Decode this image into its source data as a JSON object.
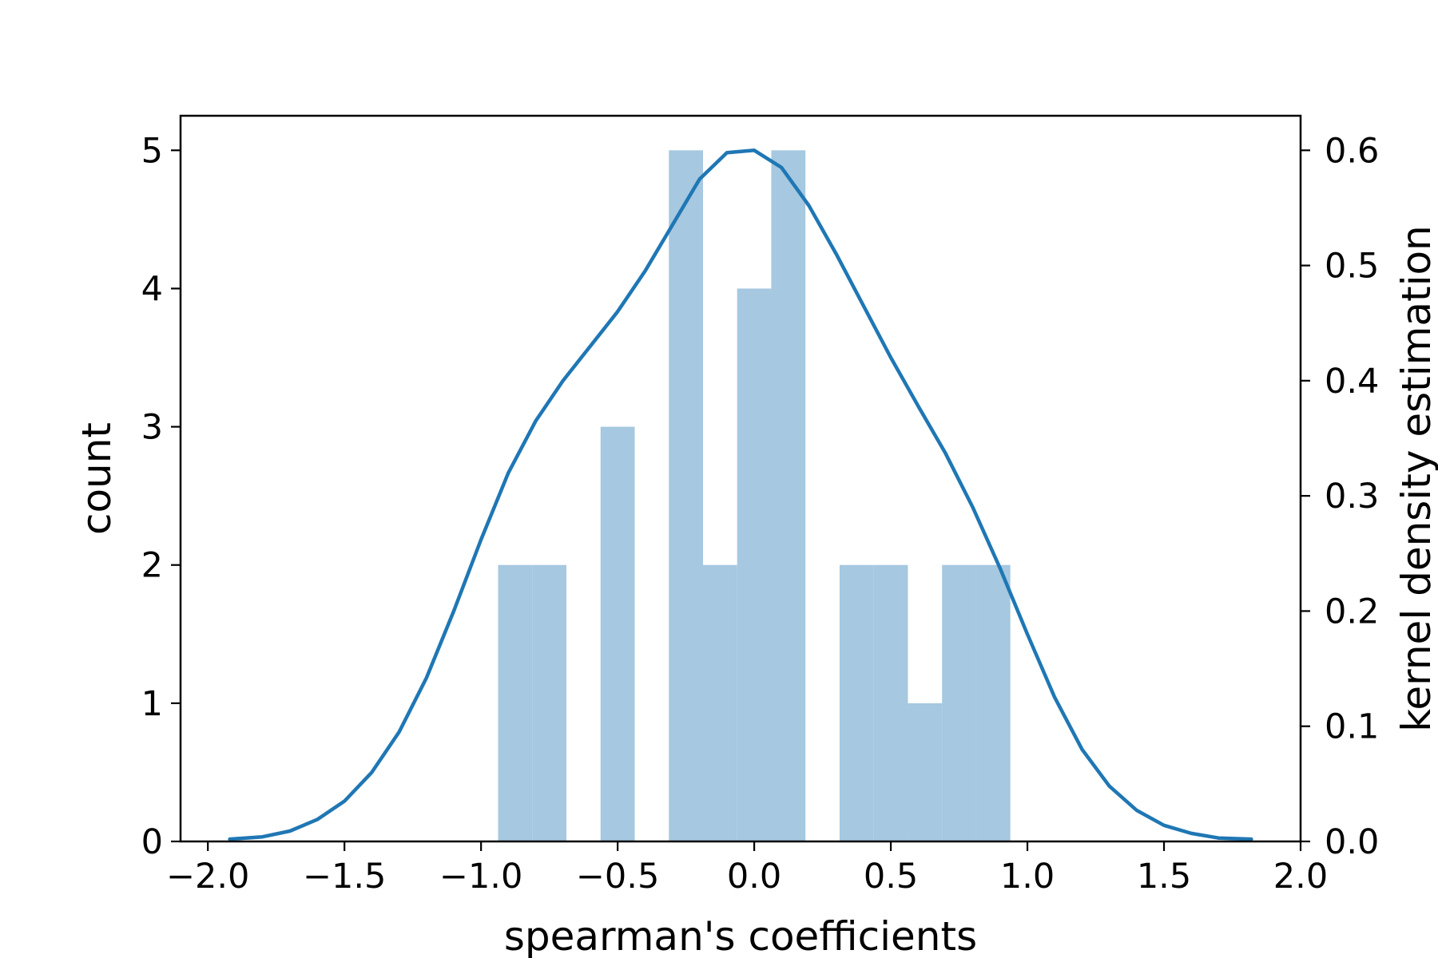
{
  "chart_data": {
    "type": "bar",
    "xlabel": "spearman's coefficients",
    "ylabel": "count",
    "y2label": "kernel density estimation",
    "xlim": [
      -2.1,
      2.0
    ],
    "ylim": [
      0,
      5.25
    ],
    "y2lim": [
      0,
      0.63
    ],
    "xticks": [
      -2.0,
      -1.5,
      -1.0,
      -0.5,
      0.0,
      0.5,
      1.0,
      1.5,
      2.0
    ],
    "xtick_labels": [
      "−2.0",
      "−1.5",
      "−1.0",
      "−0.5",
      "0.0",
      "0.5",
      "1.0",
      "1.5",
      "2.0"
    ],
    "yticks": [
      0,
      1,
      2,
      3,
      4,
      5
    ],
    "ytick_labels": [
      "0",
      "1",
      "2",
      "3",
      "4",
      "5"
    ],
    "y2ticks": [
      0.0,
      0.1,
      0.2,
      0.3,
      0.4,
      0.5,
      0.6
    ],
    "y2tick_labels": [
      "0.0",
      "0.1",
      "0.2",
      "0.3",
      "0.4",
      "0.5",
      "0.6"
    ],
    "histogram": {
      "bin_edges": [
        -0.9375,
        -0.8125,
        -0.6875,
        -0.5625,
        -0.4375,
        -0.3125,
        -0.1875,
        -0.0625,
        0.0625,
        0.1875,
        0.3125,
        0.4375,
        0.5625,
        0.6875,
        0.8125,
        0.9375
      ],
      "counts": [
        2,
        2,
        0,
        3,
        0,
        5,
        2,
        4,
        5,
        0,
        2,
        2,
        1,
        2,
        2
      ],
      "color": "#a6c8e0"
    },
    "kde": {
      "color": "#1f77b4",
      "x": [
        -1.92,
        -1.8,
        -1.7,
        -1.6,
        -1.5,
        -1.4,
        -1.3,
        -1.2,
        -1.1,
        -1.0,
        -0.9,
        -0.8,
        -0.7,
        -0.6,
        -0.5,
        -0.4,
        -0.3,
        -0.2,
        -0.1,
        0.0,
        0.1,
        0.2,
        0.3,
        0.4,
        0.5,
        0.6,
        0.7,
        0.8,
        0.9,
        1.0,
        1.1,
        1.2,
        1.3,
        1.4,
        1.5,
        1.6,
        1.7,
        1.82
      ],
      "y": [
        0.002,
        0.004,
        0.009,
        0.019,
        0.035,
        0.06,
        0.095,
        0.142,
        0.2,
        0.262,
        0.32,
        0.365,
        0.4,
        0.43,
        0.46,
        0.495,
        0.535,
        0.575,
        0.598,
        0.6,
        0.585,
        0.552,
        0.51,
        0.465,
        0.42,
        0.378,
        0.337,
        0.29,
        0.237,
        0.18,
        0.125,
        0.08,
        0.048,
        0.027,
        0.014,
        0.007,
        0.003,
        0.002
      ]
    }
  }
}
